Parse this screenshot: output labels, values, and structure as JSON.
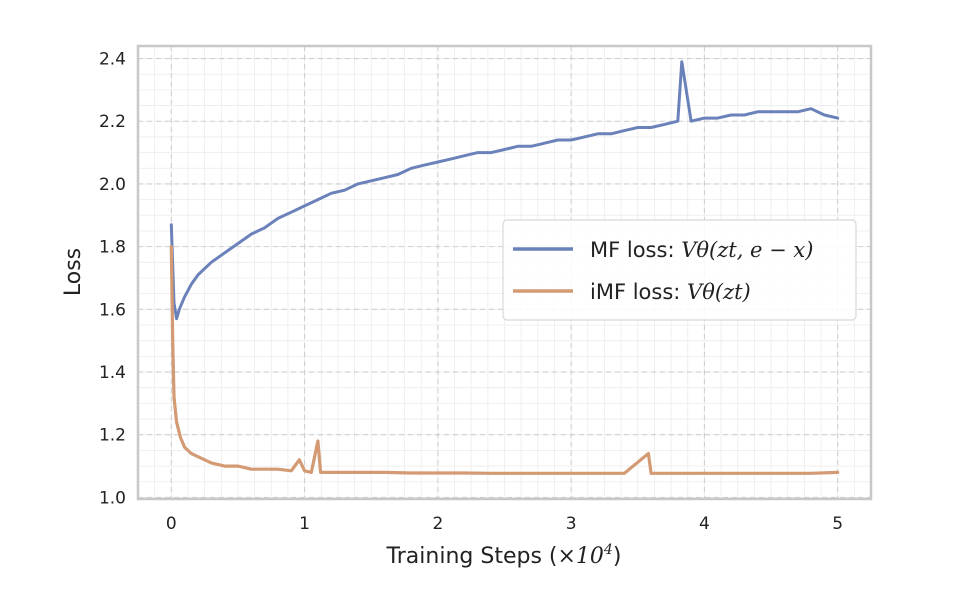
{
  "chart_data": {
    "type": "line",
    "title": "",
    "xlabel": "Training Steps (×10⁴)",
    "ylabel": "Loss",
    "xlim": [
      -0.25,
      5.25
    ],
    "ylim": [
      0.995,
      2.44
    ],
    "xticks": [
      0,
      1,
      2,
      3,
      4,
      5
    ],
    "xtick_labels": [
      "0",
      "1",
      "2",
      "3",
      "4",
      "5"
    ],
    "yticks": [
      1.0,
      1.2,
      1.4,
      1.6,
      1.8,
      2.0,
      2.2,
      2.4
    ],
    "ytick_labels": [
      "1.0",
      "1.2",
      "1.4",
      "1.6",
      "1.8",
      "2.0",
      "2.2",
      "2.4"
    ],
    "grid": true,
    "legend_position": "center-right",
    "series": [
      {
        "name": "MF loss: Vθ(zt, e − x)",
        "legend_prefix": "MF loss: ",
        "legend_math": "Vθ(zt, e − x)",
        "color": "#6a82b9",
        "x": [
          0.0,
          0.02,
          0.04,
          0.06,
          0.1,
          0.15,
          0.2,
          0.3,
          0.4,
          0.5,
          0.6,
          0.7,
          0.8,
          0.9,
          1.0,
          1.1,
          1.2,
          1.3,
          1.4,
          1.5,
          1.6,
          1.7,
          1.8,
          1.9,
          2.0,
          2.1,
          2.2,
          2.3,
          2.4,
          2.5,
          2.6,
          2.7,
          2.8,
          2.9,
          3.0,
          3.1,
          3.2,
          3.3,
          3.4,
          3.5,
          3.6,
          3.7,
          3.8,
          3.83,
          3.9,
          4.0,
          4.1,
          4.2,
          4.3,
          4.4,
          4.5,
          4.6,
          4.7,
          4.8,
          4.9,
          5.0
        ],
        "values": [
          1.87,
          1.62,
          1.57,
          1.6,
          1.64,
          1.68,
          1.71,
          1.75,
          1.78,
          1.81,
          1.84,
          1.86,
          1.89,
          1.91,
          1.93,
          1.95,
          1.97,
          1.98,
          2.0,
          2.01,
          2.02,
          2.03,
          2.05,
          2.06,
          2.07,
          2.08,
          2.09,
          2.1,
          2.1,
          2.11,
          2.12,
          2.12,
          2.13,
          2.14,
          2.14,
          2.15,
          2.16,
          2.16,
          2.17,
          2.18,
          2.18,
          2.19,
          2.2,
          2.39,
          2.2,
          2.21,
          2.21,
          2.22,
          2.22,
          2.23,
          2.23,
          2.23,
          2.23,
          2.24,
          2.22,
          2.21
        ]
      },
      {
        "name": "iMF loss: Vθ(zt)",
        "legend_prefix": "iMF loss: ",
        "legend_math": "Vθ(zt)",
        "color": "#d49a73",
        "x": [
          0.0,
          0.01,
          0.02,
          0.04,
          0.07,
          0.1,
          0.15,
          0.2,
          0.3,
          0.4,
          0.5,
          0.6,
          0.7,
          0.8,
          0.9,
          0.96,
          1.0,
          1.05,
          1.1,
          1.12,
          1.2,
          1.4,
          1.6,
          1.8,
          2.0,
          2.2,
          2.4,
          2.6,
          2.8,
          3.0,
          3.2,
          3.4,
          3.58,
          3.6,
          3.8,
          4.0,
          4.2,
          4.4,
          4.6,
          4.8,
          5.0
        ],
        "values": [
          1.8,
          1.5,
          1.32,
          1.24,
          1.19,
          1.16,
          1.14,
          1.13,
          1.11,
          1.1,
          1.1,
          1.09,
          1.09,
          1.09,
          1.085,
          1.12,
          1.085,
          1.08,
          1.18,
          1.08,
          1.08,
          1.08,
          1.08,
          1.078,
          1.078,
          1.078,
          1.077,
          1.077,
          1.077,
          1.077,
          1.077,
          1.077,
          1.14,
          1.077,
          1.077,
          1.077,
          1.077,
          1.077,
          1.077,
          1.077,
          1.08
        ]
      }
    ]
  }
}
